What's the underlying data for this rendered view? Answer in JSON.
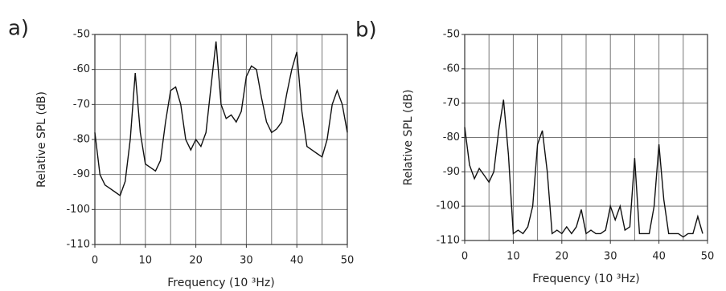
{
  "chart_data": [
    {
      "type": "line",
      "panel_label": "a)",
      "ylabel": "Relative SPL (dB)",
      "xlabel": "Frequency (10 ³Hz)",
      "x": [
        0,
        1,
        2,
        3,
        4,
        5,
        6,
        7,
        8,
        9,
        10,
        11,
        12,
        13,
        14,
        15,
        16,
        17,
        18,
        19,
        20,
        21,
        22,
        23,
        24,
        25,
        26,
        27,
        28,
        29,
        30,
        31,
        32,
        33,
        34,
        35,
        36,
        37,
        38,
        39,
        40,
        41,
        42,
        43,
        44,
        45,
        46,
        47,
        48,
        49,
        50
      ],
      "values": [
        -78,
        -90,
        -93,
        -94,
        -95,
        -96,
        -92,
        -80,
        -61,
        -78,
        -87,
        -88,
        -89,
        -86,
        -75,
        -66,
        -65,
        -70,
        -80,
        -83,
        -80,
        -82,
        -78,
        -65,
        -52,
        -70,
        -74,
        -73,
        -75,
        -72,
        -62,
        -59,
        -60,
        -68,
        -75,
        -78,
        -77,
        -75,
        -67,
        -60,
        -55,
        -72,
        -82,
        -83,
        -84,
        -85,
        -80,
        -70,
        -66,
        -70,
        -78
      ],
      "color": "#111111",
      "xlim": [
        0,
        50
      ],
      "ylim": [
        -110,
        -50
      ],
      "xticks": [
        0,
        10,
        20,
        30,
        40,
        50
      ],
      "x_minor_ticks": [
        5,
        15,
        25,
        35,
        45
      ],
      "yticks": [
        -110,
        -100,
        -90,
        -80,
        -70,
        -60,
        -50
      ],
      "grid": true
    },
    {
      "type": "line",
      "panel_label": "b)",
      "ylabel": "Relative SPL (dB)",
      "xlabel": "Frequency (10 ³Hz)",
      "x": [
        0,
        1,
        2,
        3,
        4,
        5,
        6,
        7,
        8,
        9,
        10,
        11,
        12,
        13,
        14,
        15,
        16,
        17,
        18,
        19,
        20,
        21,
        22,
        23,
        24,
        25,
        26,
        27,
        28,
        29,
        30,
        31,
        32,
        33,
        34,
        35,
        36,
        37,
        38,
        39,
        40,
        41,
        42,
        43,
        44,
        45,
        46,
        47,
        48,
        49
      ],
      "values": [
        -77,
        -88,
        -92,
        -89,
        -91,
        -93,
        -90,
        -78,
        -69,
        -85,
        -108,
        -107,
        -108,
        -106,
        -100,
        -82,
        -78,
        -90,
        -108,
        -107,
        -108,
        -106,
        -108,
        -106,
        -101,
        -108,
        -107,
        -108,
        -108,
        -107,
        -100,
        -104,
        -100,
        -107,
        -106,
        -86,
        -108,
        -108,
        -108,
        -100,
        -82,
        -98,
        -108,
        -108,
        -108,
        -109,
        -108,
        -108,
        -103,
        -108
      ],
      "color": "#111111",
      "xlim": [
        0,
        50
      ],
      "ylim": [
        -110,
        -50
      ],
      "xticks": [
        0,
        10,
        20,
        30,
        40,
        50
      ],
      "x_minor_ticks": [
        5,
        15,
        25,
        35,
        45
      ],
      "yticks": [
        -110,
        -100,
        -90,
        -80,
        -70,
        -60,
        -50
      ],
      "grid": true
    }
  ]
}
